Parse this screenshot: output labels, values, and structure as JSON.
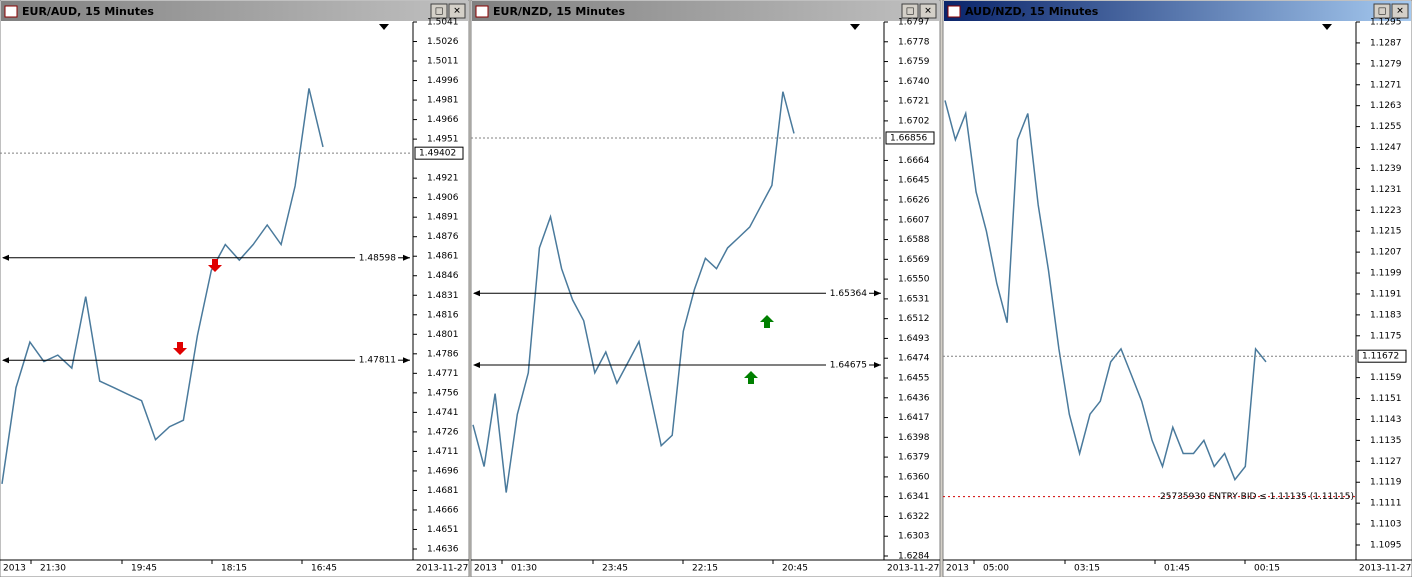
{
  "windows": [
    {
      "title": "EUR/AUD, 15 Minutes",
      "price_ticks": [
        1.5041,
        1.5026,
        1.5011,
        1.4996,
        1.4981,
        1.4966,
        1.4951,
        1.4921,
        1.4906,
        1.4891,
        1.4876,
        1.4861,
        1.4846,
        1.4831,
        1.4816,
        1.4801,
        1.4786,
        1.4771,
        1.4756,
        1.4741,
        1.4726,
        1.4711,
        1.4696,
        1.4681,
        1.4666,
        1.4651,
        1.4636
      ],
      "current_price": 1.49402,
      "price_lines": [
        1.48598,
        1.47811
      ],
      "time_labels": [
        "2013",
        "21:30",
        "19:45",
        "18:15",
        "16:45",
        "2013-11-27"
      ],
      "closes": [
        1.4686,
        1.476,
        1.4795,
        1.478,
        1.4785,
        1.4775,
        1.483,
        1.4765,
        1.476,
        1.4755,
        1.475,
        1.472,
        1.473,
        1.4735,
        1.48,
        1.485,
        1.487,
        1.4858,
        1.487,
        1.4885,
        1.487,
        1.4915,
        1.499,
        1.4945
      ]
    },
    {
      "title": "EUR/NZD, 15 Minutes",
      "price_ticks": [
        1.6797,
        1.6778,
        1.6759,
        {
          "value": 1.674,
          "label": "1.6740"
        },
        1.6721,
        1.6702,
        1.6664,
        1.6645,
        1.6626,
        1.6607,
        1.6588,
        1.6569,
        {
          "value": 1.655,
          "label": "1.6550"
        },
        1.6531,
        1.6512,
        1.6493,
        1.6474,
        1.6455,
        1.6436,
        1.6417,
        1.6398,
        1.6379,
        {
          "value": 1.636,
          "label": "1.6360"
        },
        1.6341,
        1.6322,
        1.6303,
        1.6284
      ],
      "current_price": 1.66856,
      "price_lines": [
        1.65364,
        1.64675
      ],
      "time_labels": [
        "2013",
        "01:30",
        "23:45",
        "22:15",
        "20:45",
        "2013-11-27"
      ],
      "closes": [
        1.641,
        1.637,
        1.644,
        1.6345,
        1.642,
        1.646,
        1.658,
        1.661,
        1.656,
        1.653,
        1.651,
        1.646,
        1.648,
        1.645,
        1.647,
        1.649,
        1.644,
        1.639,
        1.64,
        1.65,
        1.654,
        1.657,
        1.656,
        1.658,
        1.659,
        1.66,
        1.662,
        1.664,
        1.673,
        1.669
      ]
    },
    {
      "title": "AUD/NZD, 15 Minutes",
      "price_ticks": [
        1.1295,
        1.1287,
        1.1279,
        1.1271,
        1.1263,
        1.1255,
        1.1247,
        1.1239,
        1.1231,
        1.1223,
        1.1215,
        1.1207,
        1.1199,
        1.1191,
        1.1183,
        1.1175,
        1.1159,
        1.1151,
        1.1143,
        1.1135,
        1.1127,
        1.1119,
        1.1111,
        1.1103,
        1.1095
      ],
      "current_price": 1.11672,
      "price_lines": [],
      "order_line": {
        "price": 1.11135,
        "label": "25735930 ENTRY BID ≤ 1.11135 (1.11115)"
      },
      "time_labels": [
        "2013",
        "05:00",
        "03:15",
        "01:45",
        "00:15",
        "2013-11-27"
      ],
      "closes": [
        1.1265,
        1.125,
        1.126,
        1.123,
        1.1215,
        1.1195,
        1.118,
        1.125,
        1.126,
        1.1225,
        1.12,
        1.117,
        1.1145,
        1.113,
        1.1145,
        1.115,
        1.1165,
        1.117,
        1.116,
        1.115,
        1.1135,
        1.1125,
        1.114,
        1.113,
        1.113,
        1.1135,
        1.1125,
        1.113,
        1.112,
        1.1125,
        1.117,
        1.1165
      ]
    }
  ]
}
